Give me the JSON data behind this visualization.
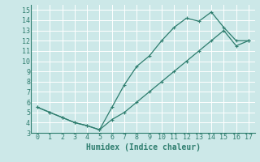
{
  "xlabel": "Humidex (Indice chaleur)",
  "background_color": "#cce8e8",
  "line_color": "#2e7d6e",
  "xlim": [
    -0.5,
    17.5
  ],
  "ylim": [
    3,
    15.5
  ],
  "xticks": [
    0,
    1,
    2,
    3,
    4,
    5,
    6,
    7,
    8,
    9,
    10,
    11,
    12,
    13,
    14,
    15,
    16,
    17
  ],
  "yticks": [
    3,
    4,
    5,
    6,
    7,
    8,
    9,
    10,
    11,
    12,
    13,
    14,
    15
  ],
  "series1_x": [
    0,
    1,
    2,
    3,
    4,
    5,
    6,
    7,
    8,
    9,
    10,
    11,
    12,
    13,
    14,
    15,
    16,
    17
  ],
  "series1_y": [
    5.5,
    5.0,
    4.5,
    4.0,
    3.7,
    3.3,
    5.5,
    7.7,
    9.5,
    10.5,
    12.0,
    13.3,
    14.2,
    13.9,
    14.8,
    13.3,
    12.0,
    12.0
  ],
  "series2_x": [
    0,
    1,
    2,
    3,
    4,
    5,
    6,
    7,
    8,
    9,
    10,
    11,
    12,
    13,
    14,
    15,
    16,
    17
  ],
  "series2_y": [
    5.5,
    5.0,
    4.5,
    4.0,
    3.7,
    3.3,
    4.3,
    5.0,
    6.0,
    7.0,
    8.0,
    9.0,
    10.0,
    11.0,
    12.0,
    13.0,
    11.5,
    12.0
  ],
  "grid_color": "#ffffff",
  "font_color": "#2e7d6e",
  "font_size": 7,
  "tick_font_size": 6
}
